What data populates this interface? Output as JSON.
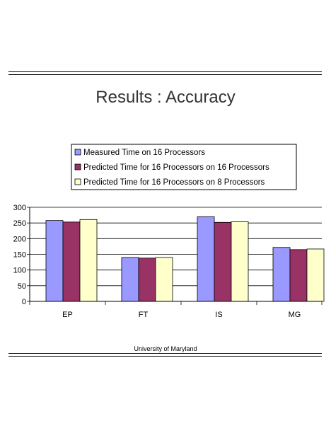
{
  "page": {
    "title": "Results : Accuracy",
    "footer": "University of Maryland"
  },
  "chart_data": {
    "type": "bar",
    "categories": [
      "EP",
      "FT",
      "IS",
      "MG"
    ],
    "series": [
      {
        "name": "Measured Time on 16 Processors",
        "color": "#9999ff",
        "values": [
          258,
          140,
          270,
          172
        ]
      },
      {
        "name": "Predicted Time for 16 Processors on 16 Processors",
        "color": "#993366",
        "values": [
          253,
          138,
          252,
          165
        ]
      },
      {
        "name": "Predicted Time for 16 Processors on 8 Processors",
        "color": "#ffffcc",
        "values": [
          261,
          140,
          254,
          167
        ]
      }
    ],
    "ylim": [
      0,
      300
    ],
    "yticks": [
      0,
      50,
      100,
      150,
      200,
      250,
      300
    ],
    "grid": true,
    "legend": "top"
  }
}
